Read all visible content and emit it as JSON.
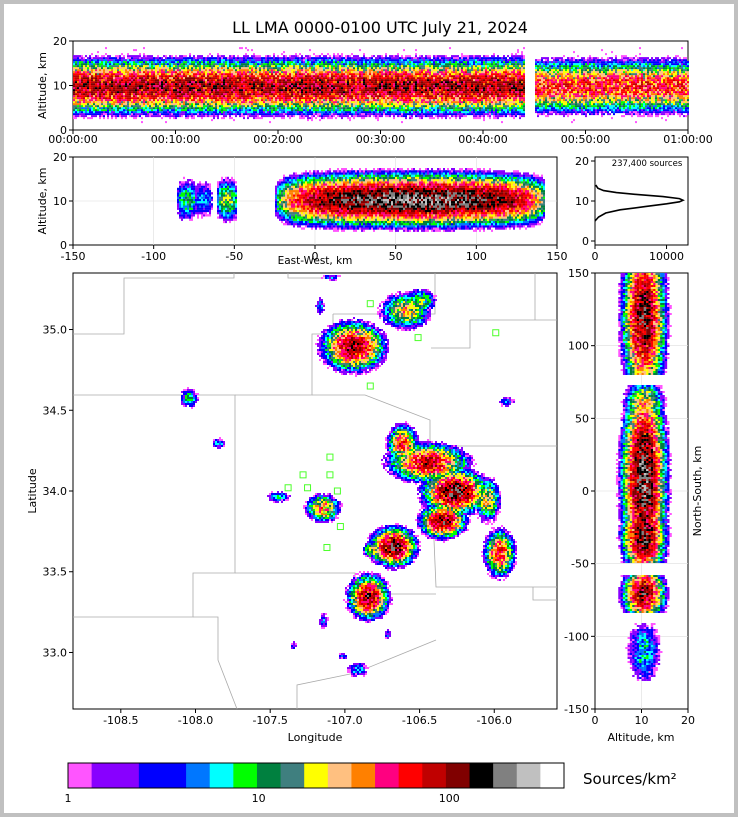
{
  "title": "LL LMA 0000-0100 UTC July 21, 2024",
  "chart_data": [
    {
      "panel": "altitude-vs-time",
      "type": "heatmap",
      "ylabel": "Altitude, km",
      "xlim_labels": [
        "00:00:00",
        "01:00:00"
      ],
      "xticks": [
        "00:00:00",
        "00:10:00",
        "00:20:00",
        "00:30:00",
        "00:40:00",
        "00:50:00",
        "01:00:00"
      ],
      "ylim": [
        0,
        20
      ],
      "yticks": [
        "0",
        "10",
        "20"
      ],
      "core_altitude_km": [
        7,
        13
      ],
      "data_gap_minutes": [
        44,
        45
      ]
    },
    {
      "panel": "altitude-vs-east-west",
      "type": "heatmap",
      "xlabel": "East-West, km",
      "ylabel": "Altitude, km",
      "xlim": [
        -150,
        150
      ],
      "xticks": [
        "-150",
        "-100",
        "-50",
        "0",
        "50",
        "100",
        "150"
      ],
      "ylim": [
        0,
        20
      ],
      "yticks": [
        "0",
        "10",
        "20"
      ]
    },
    {
      "panel": "altitude-histogram",
      "type": "line",
      "annotation": "237,400 sources",
      "xlim": [
        0,
        13000
      ],
      "xticks": [
        "0",
        "10000"
      ],
      "ylim": [
        -1,
        21
      ],
      "yticks": [
        "0",
        "10",
        "20"
      ],
      "profile": [
        [
          0,
          5
        ],
        [
          500,
          6
        ],
        [
          1500,
          7
        ],
        [
          3500,
          7.8
        ],
        [
          7000,
          8.6
        ],
        [
          10000,
          9.3
        ],
        [
          11800,
          9.8
        ],
        [
          12300,
          10.2
        ],
        [
          11800,
          10.6
        ],
        [
          9500,
          11.1
        ],
        [
          6000,
          11.6
        ],
        [
          3000,
          12.1
        ],
        [
          1200,
          12.6
        ],
        [
          400,
          13.2
        ],
        [
          100,
          14
        ]
      ]
    },
    {
      "panel": "plan-view",
      "type": "heatmap",
      "xlabel": "Longitude",
      "ylabel": "Latitude",
      "xlim": [
        -108.82,
        -105.58
      ],
      "ylim": [
        32.65,
        35.35
      ],
      "xticks": [
        "-108.5",
        "-108.0",
        "-107.5",
        "-107.0",
        "-106.5",
        "-106.0"
      ],
      "yticks": [
        "33.0",
        "33.5",
        "34.0",
        "34.5",
        "35.0"
      ],
      "stations": [
        [
          -106.83,
          35.16
        ],
        [
          -106.51,
          34.95
        ],
        [
          -105.99,
          34.98
        ],
        [
          -106.83,
          34.65
        ],
        [
          -107.1,
          34.21
        ],
        [
          -107.28,
          34.1
        ],
        [
          -107.1,
          34.1
        ],
        [
          -107.38,
          34.02
        ],
        [
          -107.25,
          34.02
        ],
        [
          -107.05,
          34.0
        ],
        [
          -107.12,
          33.88
        ],
        [
          -107.03,
          33.78
        ],
        [
          -107.12,
          33.65
        ]
      ],
      "cells": [
        {
          "lon": -106.95,
          "lat": 34.9,
          "peak": 150,
          "rx": 0.14,
          "ry": 0.1
        },
        {
          "lon": -106.6,
          "lat": 35.12,
          "peak": 40,
          "rx": 0.12,
          "ry": 0.08
        },
        {
          "lon": -106.45,
          "lat": 34.18,
          "peak": 120,
          "rx": 0.18,
          "ry": 0.08
        },
        {
          "lon": -106.27,
          "lat": 34.0,
          "peak": 220,
          "rx": 0.14,
          "ry": 0.09
        },
        {
          "lon": -106.62,
          "lat": 34.3,
          "peak": 80,
          "rx": 0.07,
          "ry": 0.08
        },
        {
          "lon": -106.35,
          "lat": 33.82,
          "peak": 180,
          "rx": 0.1,
          "ry": 0.07
        },
        {
          "lon": -106.68,
          "lat": 33.66,
          "peak": 200,
          "rx": 0.1,
          "ry": 0.08
        },
        {
          "lon": -106.82,
          "lat": 33.64,
          "peak": 30,
          "rx": 0.05,
          "ry": 0.04
        },
        {
          "lon": -105.97,
          "lat": 33.62,
          "peak": 90,
          "rx": 0.07,
          "ry": 0.1
        },
        {
          "lon": -106.85,
          "lat": 33.35,
          "peak": 160,
          "rx": 0.09,
          "ry": 0.09
        },
        {
          "lon": -107.15,
          "lat": 33.9,
          "peak": 60,
          "rx": 0.08,
          "ry": 0.06
        },
        {
          "lon": -107.45,
          "lat": 33.97,
          "peak": 8,
          "rx": 0.07,
          "ry": 0.03
        },
        {
          "lon": -108.05,
          "lat": 34.58,
          "peak": 12,
          "rx": 0.05,
          "ry": 0.05
        },
        {
          "lon": -107.85,
          "lat": 34.3,
          "peak": 8,
          "rx": 0.04,
          "ry": 0.03
        },
        {
          "lon": -107.17,
          "lat": 35.15,
          "peak": 6,
          "rx": 0.03,
          "ry": 0.05
        },
        {
          "lon": -107.1,
          "lat": 35.33,
          "peak": 5,
          "rx": 0.06,
          "ry": 0.02
        },
        {
          "lon": -106.5,
          "lat": 35.18,
          "peak": 20,
          "rx": 0.08,
          "ry": 0.06
        },
        {
          "lon": -105.92,
          "lat": 34.56,
          "peak": 6,
          "rx": 0.05,
          "ry": 0.03
        },
        {
          "lon": -106.05,
          "lat": 33.95,
          "peak": 40,
          "rx": 0.06,
          "ry": 0.1
        },
        {
          "lon": -107.15,
          "lat": 33.2,
          "peak": 5,
          "rx": 0.03,
          "ry": 0.05
        },
        {
          "lon": -106.92,
          "lat": 32.9,
          "peak": 8,
          "rx": 0.06,
          "ry": 0.04
        },
        {
          "lon": -107.02,
          "lat": 32.98,
          "peak": 5,
          "rx": 0.03,
          "ry": 0.02
        },
        {
          "lon": -107.35,
          "lat": 33.05,
          "peak": 4,
          "rx": 0.02,
          "ry": 0.03
        },
        {
          "lon": -106.72,
          "lat": 33.12,
          "peak": 5,
          "rx": 0.02,
          "ry": 0.03
        }
      ]
    },
    {
      "panel": "north-south-vs-altitude",
      "type": "heatmap",
      "xlabel": "Altitude, km",
      "ylabel": "North-South, km",
      "xlim": [
        0,
        20
      ],
      "xticks": [
        "0",
        "10",
        "20"
      ],
      "ylim": [
        -150,
        150
      ],
      "yticks": [
        "-150",
        "-100",
        "-50",
        "0",
        "50",
        "100",
        "150"
      ]
    },
    {
      "panel": "colorbar",
      "type": "heatmap",
      "label": "Sources/km²",
      "scale": "log",
      "range": [
        1,
        400
      ],
      "tick_values": [
        1,
        10,
        100
      ],
      "tick_labels": [
        "1",
        "10",
        "100"
      ],
      "colors": [
        "#ff55ff",
        "#8800ff",
        "#8800ff",
        "#0000ff",
        "#0000ff",
        "#0077ff",
        "#00ffff",
        "#00ff00",
        "#00803f",
        "#3f7f7f",
        "#ffff00",
        "#ffc080",
        "#ff8000",
        "#ff0080",
        "#ff0000",
        "#c00000",
        "#800000",
        "#000000",
        "#808080",
        "#c0c0c0",
        "#ffffff"
      ]
    }
  ]
}
